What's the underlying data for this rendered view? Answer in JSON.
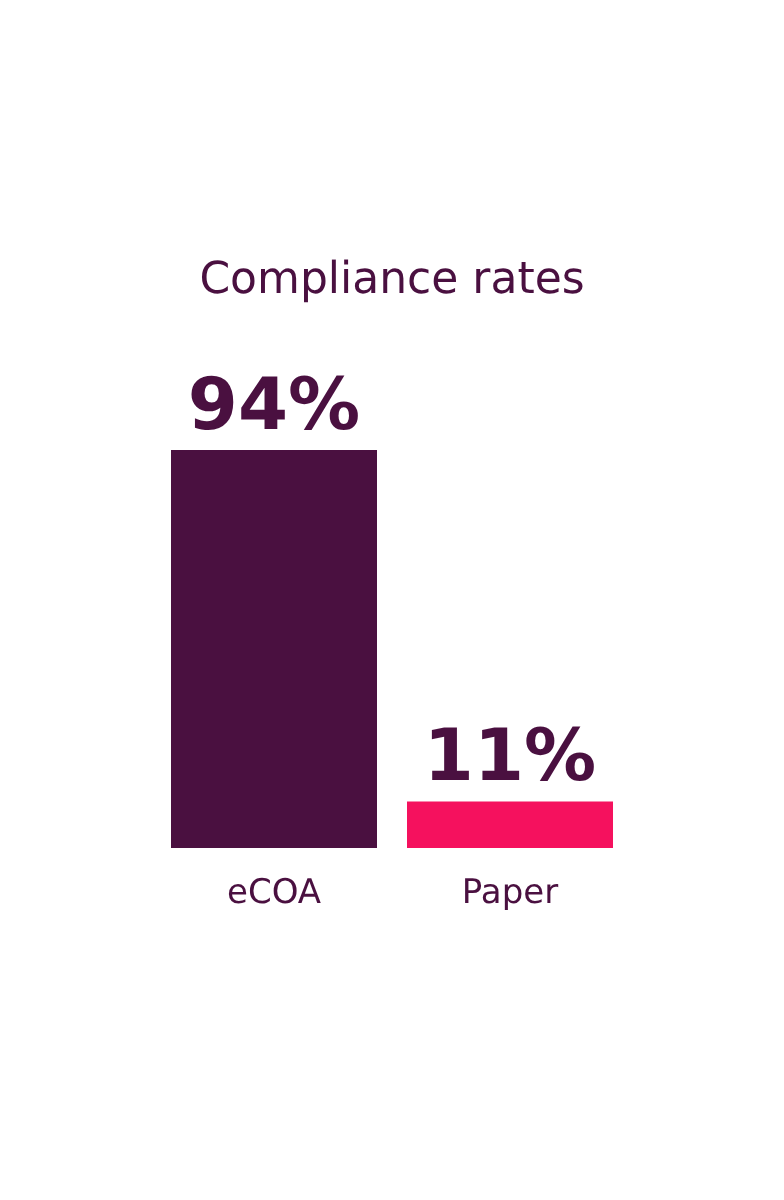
{
  "chart_data": {
    "type": "bar",
    "title": "Compliance rates",
    "categories": [
      "eCOA",
      "Paper"
    ],
    "values": [
      94,
      11
    ],
    "colors": [
      "#4a1040",
      "#f5115e"
    ],
    "value_labels": [
      "94%",
      "11%"
    ]
  }
}
